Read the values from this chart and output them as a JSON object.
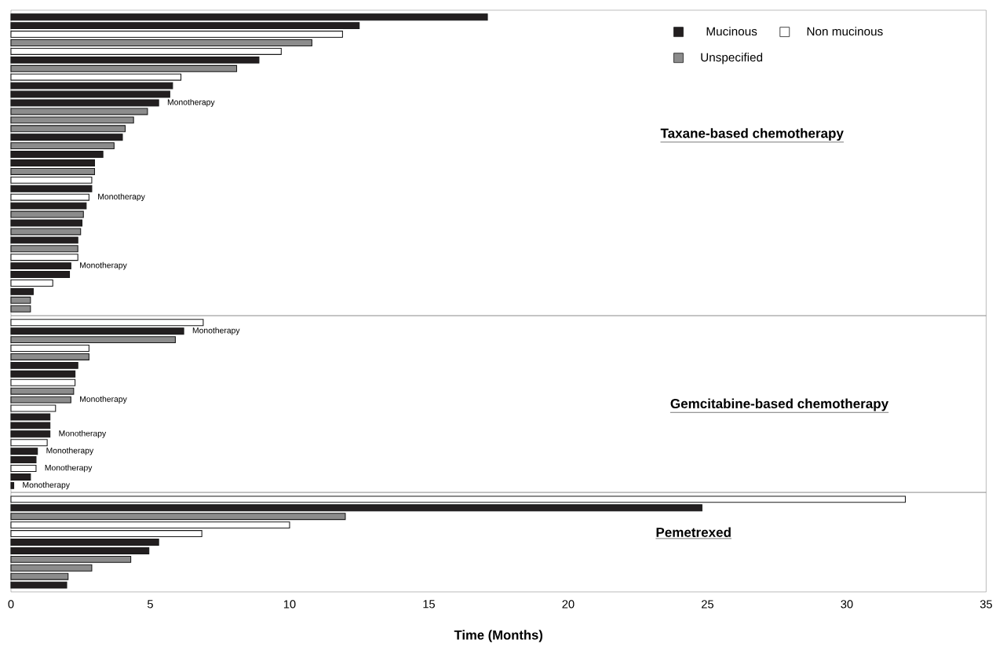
{
  "chart_data": [
    {
      "type": "bar",
      "orientation": "horizontal",
      "stacked": true,
      "title": "Taxane-based chemotherapy",
      "categories": [
        null,
        null,
        null,
        null,
        null,
        null,
        null,
        null,
        null,
        null,
        null,
        null,
        null,
        null,
        null,
        null,
        null,
        null,
        null,
        null,
        null,
        null,
        null,
        null,
        null,
        null,
        null,
        null,
        null,
        null,
        null,
        null,
        null,
        null,
        null
      ],
      "series": [
        {
          "name": "Mucinous",
          "color": "#231f20",
          "values": [
            17.1,
            12.5,
            0,
            0,
            0,
            8.9,
            0,
            0,
            5.8,
            5.7,
            5.3,
            0,
            0,
            0,
            4.0,
            0,
            3.3,
            3.0,
            0,
            0,
            2.9,
            0,
            2.7,
            0,
            2.55,
            0,
            2.4,
            0,
            0,
            2.15,
            2.1,
            0,
            0.8,
            0,
            0
          ],
          "value_labels": [
            null,
            null,
            null,
            null,
            null,
            null,
            null,
            null,
            null,
            null,
            "Monotherapy",
            null,
            null,
            null,
            null,
            null,
            null,
            null,
            null,
            null,
            null,
            null,
            null,
            null,
            null,
            null,
            null,
            null,
            null,
            "Monotherapy",
            null,
            null,
            null,
            null,
            null
          ]
        },
        {
          "name": "Non mucinous",
          "color": "#ffffff",
          "values": [
            0,
            0,
            11.9,
            0,
            9.7,
            0,
            0,
            6.1,
            0,
            0,
            0,
            0,
            0,
            0,
            0,
            0,
            0,
            0,
            0,
            2.9,
            0,
            2.8,
            0,
            0,
            0,
            0,
            0,
            0,
            2.4,
            0,
            0,
            1.5,
            0,
            0,
            0
          ],
          "value_labels": [
            null,
            null,
            null,
            null,
            null,
            null,
            null,
            null,
            null,
            null,
            null,
            null,
            null,
            null,
            null,
            null,
            null,
            null,
            null,
            null,
            null,
            "Monotherapy",
            null,
            null,
            null,
            null,
            null,
            null,
            null,
            null,
            null,
            null,
            null,
            null,
            null
          ]
        },
        {
          "name": "Unspecified",
          "color": "#8c8c8c",
          "values": [
            0,
            0,
            0,
            10.8,
            0,
            0,
            8.1,
            0,
            0,
            0,
            0,
            4.9,
            4.4,
            4.1,
            0,
            3.7,
            0,
            0,
            3.0,
            0,
            0,
            0,
            0,
            2.6,
            0,
            2.5,
            0,
            2.4,
            0,
            0,
            0,
            0,
            0,
            0.7,
            0.7
          ]
        }
      ],
      "xlim": [
        0,
        35
      ],
      "legend": "top right"
    },
    {
      "type": "bar",
      "orientation": "horizontal",
      "stacked": true,
      "title": "Gemcitabine-based chemotherapy",
      "categories": [
        null,
        null,
        null,
        null,
        null,
        null,
        null,
        null,
        null,
        null,
        null,
        null,
        null,
        null,
        null,
        null,
        null,
        null,
        null,
        null
      ],
      "series": [
        {
          "color": "#231f20",
          "values": [
            0,
            6.2,
            0,
            0,
            0,
            2.4,
            2.3,
            0,
            0,
            0,
            0,
            1.4,
            1.4,
            1.4,
            0,
            0.95,
            0.9,
            0,
            0.7,
            0.1
          ],
          "value_labels": [
            null,
            "Monotherapy",
            null,
            null,
            null,
            null,
            null,
            null,
            null,
            null,
            null,
            null,
            null,
            "Monotherapy",
            null,
            "Monotherapy",
            null,
            null,
            null,
            "Monotherapy"
          ]
        },
        {
          "color": "#ffffff",
          "values": [
            6.9,
            0,
            0,
            2.8,
            0,
            0,
            0,
            2.3,
            0,
            0,
            1.6,
            0,
            0,
            0,
            1.3,
            0,
            0,
            0.9,
            0,
            0
          ],
          "value_labels": [
            null,
            null,
            null,
            null,
            null,
            null,
            null,
            null,
            null,
            null,
            null,
            null,
            null,
            null,
            null,
            null,
            null,
            "Monotherapy",
            null,
            null
          ]
        },
        {
          "color": "#8c8c8c",
          "values": [
            0,
            0,
            5.9,
            0,
            2.8,
            0,
            0,
            0,
            2.25,
            2.15,
            0,
            0,
            0,
            0,
            0,
            0,
            0,
            0,
            0,
            0
          ],
          "value_labels": [
            null,
            null,
            null,
            null,
            null,
            null,
            null,
            null,
            null,
            "Monotherapy",
            null,
            null,
            null,
            null,
            null,
            null,
            null,
            null,
            null,
            null
          ]
        }
      ],
      "xlim": [
        0,
        35
      ]
    },
    {
      "type": "bar",
      "orientation": "horizontal",
      "stacked": true,
      "title": "Pemetrexed",
      "categories": [
        null,
        null,
        null,
        null,
        null,
        null,
        null,
        null,
        null,
        null,
        null
      ],
      "series": [
        {
          "color": "#231f20",
          "values": [
            0,
            24.8,
            0,
            0,
            0,
            5.3,
            4.95,
            0,
            0,
            0,
            2.0
          ]
        },
        {
          "color": "#ffffff",
          "values": [
            32.1,
            0,
            0,
            10.0,
            6.85,
            0,
            0,
            0,
            0,
            0,
            0
          ]
        },
        {
          "color": "#8c8c8c",
          "values": [
            0,
            0,
            12.0,
            0,
            0,
            0,
            0,
            4.3,
            2.9,
            2.05,
            0
          ]
        }
      ],
      "xlim": [
        0,
        35
      ],
      "xticks": [
        0,
        5,
        10,
        15,
        20,
        25,
        30,
        35
      ],
      "xlabel": "Time (Months)"
    }
  ]
}
